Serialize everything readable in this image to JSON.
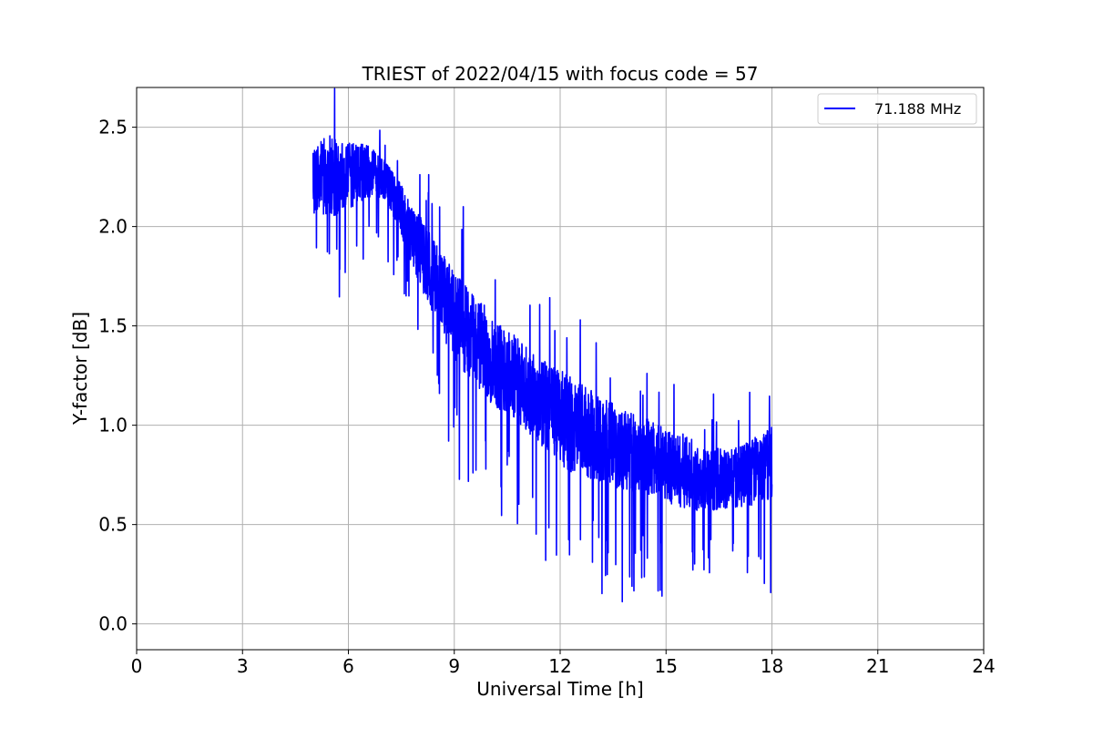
{
  "chart_data": {
    "type": "line",
    "title": "TRIEST of 2022/04/15 with focus code = 57",
    "xlabel": "Universal Time [h]",
    "ylabel": "Y-factor [dB]",
    "xlim": [
      0,
      24
    ],
    "ylim": [
      -0.13,
      2.7
    ],
    "xticks": [
      "0",
      "3",
      "6",
      "9",
      "12",
      "15",
      "18",
      "21",
      "24"
    ],
    "yticks": [
      "0.0",
      "0.5",
      "1.0",
      "1.5",
      "2.0",
      "2.5"
    ],
    "grid": true,
    "legend_position": "top-right",
    "series": [
      {
        "name": "71.188 MHz",
        "color": "#0000ff",
        "x": [
          5.0,
          5.25,
          5.5,
          5.75,
          6.0,
          6.25,
          6.5,
          6.75,
          7.0,
          7.25,
          7.5,
          7.75,
          8.0,
          8.25,
          8.5,
          8.75,
          9.0,
          9.25,
          9.5,
          9.75,
          10.0,
          10.25,
          10.5,
          10.75,
          11.0,
          11.25,
          11.5,
          11.75,
          12.0,
          12.25,
          12.5,
          12.75,
          13.0,
          13.25,
          13.5,
          13.75,
          14.0,
          14.25,
          14.5,
          14.75,
          15.0,
          15.25,
          15.5,
          15.75,
          16.0,
          16.25,
          16.5,
          16.75,
          17.0,
          17.25,
          17.5,
          17.75,
          18.0
        ],
        "y": [
          2.22,
          2.25,
          2.26,
          2.24,
          2.25,
          2.27,
          2.28,
          2.27,
          2.24,
          2.17,
          2.08,
          1.98,
          1.89,
          1.8,
          1.72,
          1.63,
          1.56,
          1.5,
          1.45,
          1.4,
          1.35,
          1.31,
          1.27,
          1.23,
          1.19,
          1.15,
          1.11,
          1.07,
          1.04,
          1.01,
          0.98,
          0.96,
          0.94,
          0.92,
          0.9,
          0.88,
          0.86,
          0.85,
          0.84,
          0.82,
          0.8,
          0.78,
          0.77,
          0.75,
          0.74,
          0.73,
          0.73,
          0.73,
          0.74,
          0.75,
          0.77,
          0.79,
          0.82
        ],
        "noise_amplitude": [
          0.2,
          0.22,
          0.24,
          0.22,
          0.2,
          0.18,
          0.16,
          0.14,
          0.12,
          0.13,
          0.15,
          0.17,
          0.2,
          0.22,
          0.24,
          0.25,
          0.26,
          0.27,
          0.27,
          0.27,
          0.27,
          0.27,
          0.26,
          0.26,
          0.25,
          0.25,
          0.26,
          0.27,
          0.28,
          0.28,
          0.28,
          0.27,
          0.26,
          0.25,
          0.25,
          0.25,
          0.24,
          0.23,
          0.23,
          0.22,
          0.22,
          0.22,
          0.22,
          0.21,
          0.2,
          0.19,
          0.18,
          0.18,
          0.18,
          0.19,
          0.2,
          0.21,
          0.22
        ]
      }
    ]
  }
}
